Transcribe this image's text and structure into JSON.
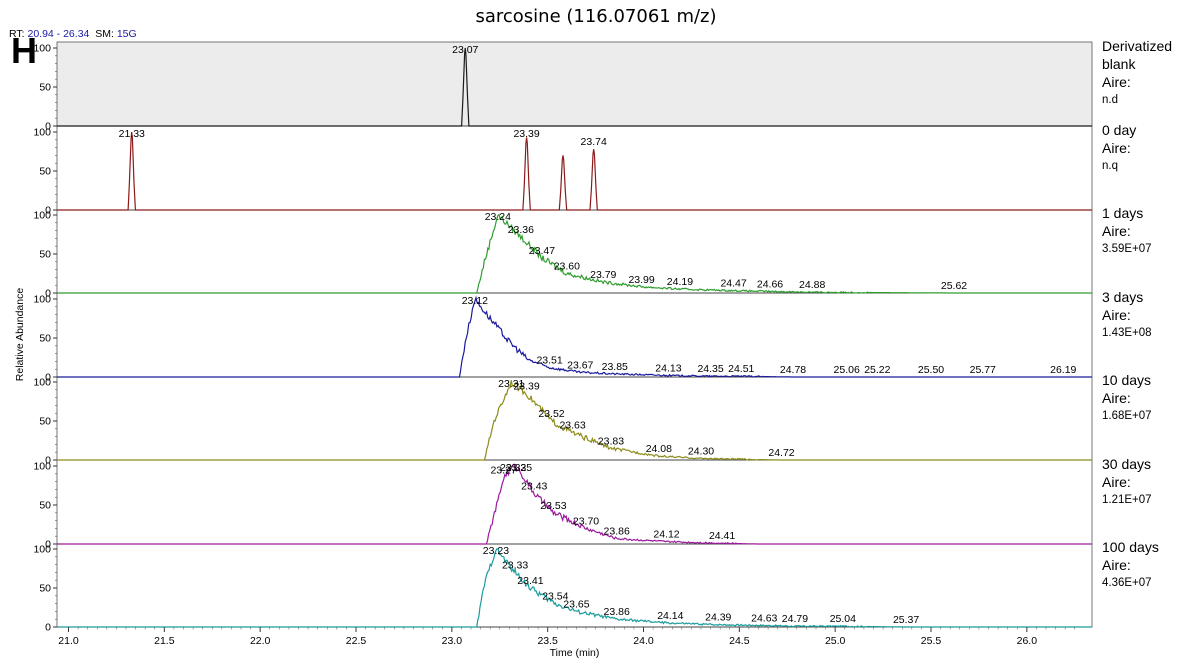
{
  "title": "sarcosine (116.07061 m/z)",
  "rt_label": "RT:",
  "rt_range": "20.94 - 26.34",
  "sm_label": "SM:",
  "sm_value": "15G",
  "panel_letter": "H",
  "chart_data": {
    "type": "line",
    "xlabel": "Time (min)",
    "ylabel": "Relative Abundance",
    "xlim": [
      20.94,
      26.34
    ],
    "ylim": [
      0,
      100
    ],
    "xticks": [
      "21.0",
      "21.5",
      "22.0",
      "22.5",
      "23.0",
      "23.5",
      "24.0",
      "24.5",
      "25.0",
      "25.5",
      "26.0"
    ],
    "yticks": [
      "0",
      "50",
      "100"
    ],
    "grid": false,
    "series": [
      {
        "name": "Derivatized blank",
        "annotation": [
          "Derivatized",
          "blank",
          "Aire:",
          "n.d"
        ],
        "color": "#1a1a1a",
        "shape": "spikes",
        "peaks": [
          [
            23.07,
            100
          ]
        ],
        "labels": [
          [
            "23.07",
            23.07,
            100
          ]
        ]
      },
      {
        "name": "0 day",
        "annotation": [
          "0 day",
          "Aire:",
          "n.q"
        ],
        "color": "#8b1a1a",
        "shape": "spikes",
        "peaks": [
          [
            21.33,
            100
          ],
          [
            23.39,
            93
          ],
          [
            23.58,
            70
          ],
          [
            23.74,
            78
          ]
        ],
        "labels": [
          [
            "21.33",
            21.33,
            100
          ],
          [
            "23.39",
            23.39,
            93
          ],
          [
            "23.74",
            23.74,
            78
          ]
        ]
      },
      {
        "name": "1 days",
        "annotation": [
          "1 days",
          "Aire:",
          "3.59E+07"
        ],
        "color": "#2e9e2e",
        "shape": "tail",
        "profile": [
          [
            23.13,
            0
          ],
          [
            23.17,
            40
          ],
          [
            23.24,
            100
          ],
          [
            23.36,
            72
          ],
          [
            23.47,
            45
          ],
          [
            23.6,
            25
          ],
          [
            23.79,
            14
          ],
          [
            23.99,
            8
          ],
          [
            24.19,
            5
          ],
          [
            24.47,
            3
          ],
          [
            24.66,
            2
          ],
          [
            24.88,
            1
          ],
          [
            25.62,
            0
          ],
          [
            26.34,
            0
          ]
        ],
        "labels": [
          [
            "23.24",
            23.24,
            100
          ],
          [
            "23.36",
            23.36,
            72
          ],
          [
            "23.47",
            23.47,
            45
          ],
          [
            "23.60",
            23.6,
            25
          ],
          [
            "23.79",
            23.79,
            14
          ],
          [
            "23.99",
            23.99,
            8
          ],
          [
            "24.19",
            24.19,
            5
          ],
          [
            "24.47",
            24.47,
            3
          ],
          [
            "24.66",
            24.66,
            2
          ],
          [
            "24.88",
            24.88,
            1
          ],
          [
            "25.62",
            25.62,
            0
          ]
        ]
      },
      {
        "name": "3 days",
        "annotation": [
          "3 days",
          "Aire:",
          "1.43E+08"
        ],
        "color": "#1a1a9c",
        "shape": "tail",
        "profile": [
          [
            23.04,
            0
          ],
          [
            23.07,
            45
          ],
          [
            23.12,
            100
          ],
          [
            23.2,
            75
          ],
          [
            23.3,
            45
          ],
          [
            23.4,
            22
          ],
          [
            23.51,
            12
          ],
          [
            23.67,
            6
          ],
          [
            23.85,
            4
          ],
          [
            24.13,
            2
          ],
          [
            24.35,
            1
          ],
          [
            24.51,
            1
          ],
          [
            24.78,
            0
          ],
          [
            26.34,
            0
          ]
        ],
        "labels": [
          [
            "23.12",
            23.12,
            100
          ],
          [
            "23.51",
            23.51,
            12
          ],
          [
            "23.67",
            23.67,
            6
          ],
          [
            "23.85",
            23.85,
            4
          ],
          [
            "24.13",
            24.13,
            2
          ],
          [
            "24.35",
            24.35,
            1
          ],
          [
            "24.51",
            24.51,
            1
          ],
          [
            "24.78",
            24.78,
            0
          ],
          [
            "25.06",
            25.06,
            0
          ],
          [
            "25.22",
            25.22,
            0
          ],
          [
            "25.50",
            25.5,
            0
          ],
          [
            "25.77",
            25.77,
            0
          ],
          [
            "26.19",
            26.19,
            0
          ]
        ]
      },
      {
        "name": "10 days",
        "annotation": [
          "10 days",
          "Aire:",
          "1.68E+07"
        ],
        "color": "#8c8c1a",
        "shape": "tail",
        "profile": [
          [
            23.17,
            0
          ],
          [
            23.22,
            50
          ],
          [
            23.31,
            100
          ],
          [
            23.39,
            85
          ],
          [
            23.52,
            50
          ],
          [
            23.63,
            35
          ],
          [
            23.83,
            15
          ],
          [
            24.08,
            5
          ],
          [
            24.3,
            2
          ],
          [
            24.72,
            0
          ],
          [
            26.34,
            0
          ]
        ],
        "labels": [
          [
            "23.31",
            23.31,
            100
          ],
          [
            "23.39",
            23.39,
            85
          ],
          [
            "23.52",
            23.52,
            50
          ],
          [
            "23.63",
            23.63,
            35
          ],
          [
            "23.83",
            23.83,
            15
          ],
          [
            "24.08",
            24.08,
            5
          ],
          [
            "24.30",
            24.3,
            2
          ],
          [
            "24.72",
            24.72,
            0
          ]
        ]
      },
      {
        "name": "30 days",
        "annotation": [
          "30 days",
          "Aire:",
          "1.21E+07"
        ],
        "color": "#9c1a9c",
        "shape": "tail",
        "profile": [
          [
            23.18,
            0
          ],
          [
            23.24,
            55
          ],
          [
            23.27,
            85
          ],
          [
            23.32,
            100
          ],
          [
            23.35,
            95
          ],
          [
            23.43,
            65
          ],
          [
            23.53,
            40
          ],
          [
            23.7,
            20
          ],
          [
            23.86,
            7
          ],
          [
            24.12,
            3
          ],
          [
            24.41,
            1
          ],
          [
            24.6,
            0
          ],
          [
            26.34,
            0
          ]
        ],
        "labels": [
          [
            "23.27",
            23.27,
            85
          ],
          [
            "23.32",
            23.32,
            100
          ],
          [
            "23.35",
            23.35,
            95
          ],
          [
            "23.43",
            23.43,
            65
          ],
          [
            "23.53",
            23.53,
            40
          ],
          [
            "23.70",
            23.7,
            20
          ],
          [
            "23.86",
            23.86,
            7
          ],
          [
            "24.12",
            24.12,
            3
          ],
          [
            "24.41",
            24.41,
            1
          ]
        ]
      },
      {
        "name": "100 days",
        "annotation": [
          "100 days",
          "Aire:",
          "4.36E+07"
        ],
        "color": "#1a9c9c",
        "shape": "tail",
        "profile": [
          [
            23.13,
            0
          ],
          [
            23.17,
            55
          ],
          [
            23.23,
            100
          ],
          [
            23.33,
            70
          ],
          [
            23.41,
            50
          ],
          [
            23.54,
            30
          ],
          [
            23.65,
            20
          ],
          [
            23.86,
            10
          ],
          [
            24.14,
            5
          ],
          [
            24.39,
            3
          ],
          [
            24.63,
            2
          ],
          [
            24.79,
            1
          ],
          [
            25.04,
            1
          ],
          [
            25.37,
            0
          ],
          [
            26.34,
            0
          ]
        ],
        "labels": [
          [
            "23.23",
            23.23,
            100
          ],
          [
            "23.33",
            23.33,
            70
          ],
          [
            "23.41",
            23.41,
            50
          ],
          [
            "23.54",
            23.54,
            30
          ],
          [
            "23.65",
            23.65,
            20
          ],
          [
            "23.86",
            23.86,
            10
          ],
          [
            "24.14",
            24.14,
            5
          ],
          [
            "24.39",
            24.39,
            3
          ],
          [
            "24.63",
            24.63,
            2
          ],
          [
            "24.79",
            24.79,
            1
          ],
          [
            "25.04",
            25.04,
            1
          ],
          [
            "25.37",
            25.37,
            0
          ]
        ]
      }
    ]
  }
}
